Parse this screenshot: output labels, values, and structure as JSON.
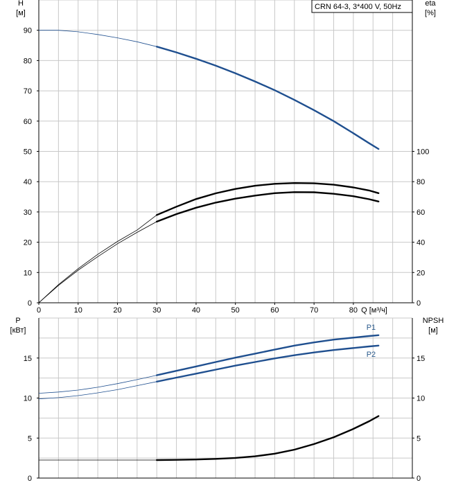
{
  "title_box": "CRN 64-3, 3*400 V, 50Hz",
  "colors": {
    "blue": "#1f4f8f",
    "black": "#000000",
    "grid": "#c8c8c8"
  },
  "chart_data": [
    {
      "type": "line",
      "name": "head-efficiency",
      "left_axis": {
        "label_line1": "H",
        "label_line2": "[м]",
        "ylim": [
          0,
          100
        ],
        "ticks": [
          0,
          10,
          20,
          30,
          40,
          50,
          60,
          70,
          80,
          90
        ]
      },
      "right_axis": {
        "label_line1": "eta",
        "label_line2": "[%]",
        "ylim": [
          0,
          200
        ],
        "ticks": [
          0,
          20,
          40,
          60,
          80,
          100
        ]
      },
      "x_axis": {
        "label": "Q [м³/ч]",
        "xlim": [
          0,
          95
        ],
        "ticks": [
          0,
          10,
          20,
          30,
          40,
          50,
          60,
          70,
          80
        ]
      },
      "grid": true,
      "series": [
        {
          "id": "H",
          "axis": "left",
          "color": "#1f4f8f",
          "op_from": 30,
          "points": [
            [
              0,
              90
            ],
            [
              5,
              90
            ],
            [
              10,
              89.5
            ],
            [
              15,
              88.6
            ],
            [
              20,
              87.5
            ],
            [
              25,
              86.2
            ],
            [
              30,
              84.6
            ],
            [
              35,
              82.7
            ],
            [
              40,
              80.6
            ],
            [
              45,
              78.3
            ],
            [
              50,
              75.8
            ],
            [
              55,
              73.1
            ],
            [
              60,
              70.2
            ],
            [
              65,
              67.0
            ],
            [
              70,
              63.6
            ],
            [
              75,
              60.0
            ],
            [
              80,
              56.0
            ],
            [
              84,
              52.7
            ],
            [
              86.4,
              50.8
            ]
          ]
        },
        {
          "id": "eta_upper",
          "axis": "right",
          "color": "#000000",
          "op_from": 30,
          "points": [
            [
              0,
              0
            ],
            [
              5,
              12
            ],
            [
              10,
              22.5
            ],
            [
              15,
              32
            ],
            [
              20,
              40.5
            ],
            [
              25,
              48
            ],
            [
              30,
              58
            ],
            [
              35,
              63.5
            ],
            [
              40,
              68.5
            ],
            [
              45,
              72.3
            ],
            [
              50,
              75.2
            ],
            [
              55,
              77.3
            ],
            [
              60,
              78.6
            ],
            [
              65,
              79.1
            ],
            [
              70,
              78.9
            ],
            [
              75,
              78
            ],
            [
              80,
              76.2
            ],
            [
              84,
              74.2
            ],
            [
              86.4,
              72.4
            ]
          ]
        },
        {
          "id": "eta_lower",
          "axis": "right",
          "color": "#000000",
          "op_from": 30,
          "points": [
            [
              0,
              0
            ],
            [
              5,
              11.5
            ],
            [
              10,
              21.5
            ],
            [
              15,
              30.5
            ],
            [
              20,
              39
            ],
            [
              25,
              46.5
            ],
            [
              30,
              53.6
            ],
            [
              35,
              58.6
            ],
            [
              40,
              62.8
            ],
            [
              45,
              66.2
            ],
            [
              50,
              68.8
            ],
            [
              55,
              70.8
            ],
            [
              60,
              72.4
            ],
            [
              65,
              73.1
            ],
            [
              70,
              73
            ],
            [
              75,
              72
            ],
            [
              80,
              70.4
            ],
            [
              84,
              68.4
            ],
            [
              86.4,
              66.9
            ]
          ]
        }
      ]
    },
    {
      "type": "line",
      "name": "power-npsh",
      "left_axis": {
        "label_line1": "P",
        "label_line2": "[кВт]",
        "ylim": [
          0,
          20
        ],
        "ticks": [
          0,
          5,
          10,
          15
        ]
      },
      "right_axis": {
        "label_line1": "NPSH",
        "label_line2": "[м]",
        "ylim": [
          0,
          20
        ],
        "ticks": [
          0,
          5,
          10,
          15
        ]
      },
      "x_axis": {
        "xlim": [
          0,
          95
        ]
      },
      "grid": true,
      "series": [
        {
          "id": "P1",
          "label": "P1",
          "axis": "left",
          "color": "#1f4f8f",
          "op_from": 30,
          "points": [
            [
              0,
              10.6
            ],
            [
              5,
              10.75
            ],
            [
              10,
              11.0
            ],
            [
              15,
              11.35
            ],
            [
              20,
              11.8
            ],
            [
              25,
              12.3
            ],
            [
              30,
              12.85
            ],
            [
              35,
              13.4
            ],
            [
              40,
              13.95
            ],
            [
              45,
              14.5
            ],
            [
              50,
              15.05
            ],
            [
              55,
              15.55
            ],
            [
              60,
              16.05
            ],
            [
              65,
              16.55
            ],
            [
              70,
              16.95
            ],
            [
              75,
              17.3
            ],
            [
              80,
              17.55
            ],
            [
              84,
              17.75
            ],
            [
              86.4,
              17.85
            ]
          ]
        },
        {
          "id": "P2",
          "label": "P2",
          "axis": "left",
          "color": "#1f4f8f",
          "op_from": 30,
          "points": [
            [
              0,
              9.9
            ],
            [
              5,
              10.05
            ],
            [
              10,
              10.3
            ],
            [
              15,
              10.65
            ],
            [
              20,
              11.05
            ],
            [
              25,
              11.55
            ],
            [
              30,
              12.05
            ],
            [
              35,
              12.55
            ],
            [
              40,
              13.05
            ],
            [
              45,
              13.55
            ],
            [
              50,
              14.05
            ],
            [
              55,
              14.5
            ],
            [
              60,
              14.95
            ],
            [
              65,
              15.35
            ],
            [
              70,
              15.7
            ],
            [
              75,
              16.0
            ],
            [
              80,
              16.25
            ],
            [
              84,
              16.45
            ],
            [
              86.4,
              16.55
            ]
          ]
        },
        {
          "id": "NPSH",
          "axis": "right",
          "color": "#000000",
          "op_from": 30,
          "points": [
            [
              0,
              2.25
            ],
            [
              10,
              2.25
            ],
            [
              20,
              2.25
            ],
            [
              30,
              2.25
            ],
            [
              35,
              2.28
            ],
            [
              40,
              2.32
            ],
            [
              45,
              2.4
            ],
            [
              50,
              2.52
            ],
            [
              55,
              2.72
            ],
            [
              60,
              3.05
            ],
            [
              65,
              3.55
            ],
            [
              70,
              4.25
            ],
            [
              75,
              5.1
            ],
            [
              80,
              6.15
            ],
            [
              84,
              7.1
            ],
            [
              86.4,
              7.75
            ]
          ]
        }
      ]
    }
  ]
}
